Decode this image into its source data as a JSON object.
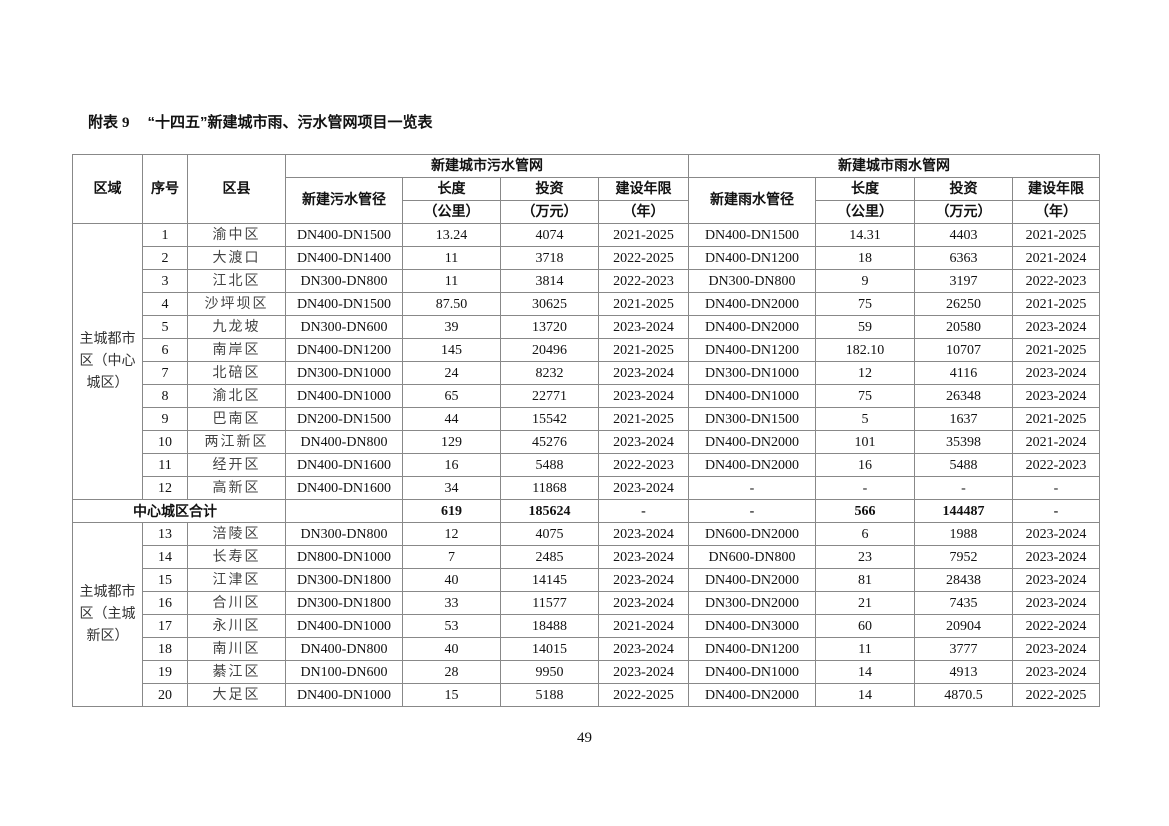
{
  "title": {
    "label": "附表",
    "number": "9",
    "text": "“十四五”新建城市雨、污水管网项目一览表"
  },
  "header": {
    "region": "区域",
    "seq": "序号",
    "district": "区县",
    "sewage_group": "新建城市污水管网",
    "rain_group": "新建城市雨水管网",
    "sewage_diameter": "新建污水管径",
    "rain_diameter": "新建雨水管径",
    "length": "长度",
    "length_unit": "（公里）",
    "investment": "投资",
    "investment_unit": "（万元）",
    "period": "建设年限",
    "period_unit": "（年）"
  },
  "groups": [
    {
      "region": "主城都市区（中心城区）",
      "rows": [
        [
          "1",
          "渝中区",
          "DN400-DN1500",
          "13.24",
          "4074",
          "2021-2025",
          "DN400-DN1500",
          "14.31",
          "4403",
          "2021-2025"
        ],
        [
          "2",
          "大渡口",
          "DN400-DN1400",
          "11",
          "3718",
          "2022-2025",
          "DN400-DN1200",
          "18",
          "6363",
          "2021-2024"
        ],
        [
          "3",
          "江北区",
          "DN300-DN800",
          "11",
          "3814",
          "2022-2023",
          "DN300-DN800",
          "9",
          "3197",
          "2022-2023"
        ],
        [
          "4",
          "沙坪坝区",
          "DN400-DN1500",
          "87.50",
          "30625",
          "2021-2025",
          "DN400-DN2000",
          "75",
          "26250",
          "2021-2025"
        ],
        [
          "5",
          "九龙坡",
          "DN300-DN600",
          "39",
          "13720",
          "2023-2024",
          "DN400-DN2000",
          "59",
          "20580",
          "2023-2024"
        ],
        [
          "6",
          "南岸区",
          "DN400-DN1200",
          "145",
          "20496",
          "2021-2025",
          "DN400-DN1200",
          "182.10",
          "10707",
          "2021-2025"
        ],
        [
          "7",
          "北碚区",
          "DN300-DN1000",
          "24",
          "8232",
          "2023-2024",
          "DN300-DN1000",
          "12",
          "4116",
          "2023-2024"
        ],
        [
          "8",
          "渝北区",
          "DN400-DN1000",
          "65",
          "22771",
          "2023-2024",
          "DN400-DN1000",
          "75",
          "26348",
          "2023-2024"
        ],
        [
          "9",
          "巴南区",
          "DN200-DN1500",
          "44",
          "15542",
          "2021-2025",
          "DN300-DN1500",
          "5",
          "1637",
          "2021-2025"
        ],
        [
          "10",
          "两江新区",
          "DN400-DN800",
          "129",
          "45276",
          "2023-2024",
          "DN400-DN2000",
          "101",
          "35398",
          "2021-2024"
        ],
        [
          "11",
          "经开区",
          "DN400-DN1600",
          "16",
          "5488",
          "2022-2023",
          "DN400-DN2000",
          "16",
          "5488",
          "2022-2023"
        ],
        [
          "12",
          "高新区",
          "DN400-DN1600",
          "34",
          "11868",
          "2023-2024",
          "-",
          "-",
          "-",
          "-"
        ]
      ],
      "total": {
        "label": "中心城区合计",
        "values": [
          "",
          "619",
          "185624",
          "-",
          "-",
          "566",
          "144487",
          "-"
        ]
      }
    },
    {
      "region": "主城都市区（主城新区）",
      "rows": [
        [
          "13",
          "涪陵区",
          "DN300-DN800",
          "12",
          "4075",
          "2023-2024",
          "DN600-DN2000",
          "6",
          "1988",
          "2023-2024"
        ],
        [
          "14",
          "长寿区",
          "DN800-DN1000",
          "7",
          "2485",
          "2023-2024",
          "DN600-DN800",
          "23",
          "7952",
          "2023-2024"
        ],
        [
          "15",
          "江津区",
          "DN300-DN1800",
          "40",
          "14145",
          "2023-2024",
          "DN400-DN2000",
          "81",
          "28438",
          "2023-2024"
        ],
        [
          "16",
          "合川区",
          "DN300-DN1800",
          "33",
          "11577",
          "2023-2024",
          "DN300-DN2000",
          "21",
          "7435",
          "2023-2024"
        ],
        [
          "17",
          "永川区",
          "DN400-DN1000",
          "53",
          "18488",
          "2021-2024",
          "DN400-DN3000",
          "60",
          "20904",
          "2022-2024"
        ],
        [
          "18",
          "南川区",
          "DN400-DN800",
          "40",
          "14015",
          "2023-2024",
          "DN400-DN1200",
          "11",
          "3777",
          "2023-2024"
        ],
        [
          "19",
          "綦江区",
          "DN100-DN600",
          "28",
          "9950",
          "2023-2024",
          "DN400-DN1000",
          "14",
          "4913",
          "2023-2024"
        ],
        [
          "20",
          "大足区",
          "DN400-DN1000",
          "15",
          "5188",
          "2022-2025",
          "DN400-DN2000",
          "14",
          "4870.5",
          "2022-2025"
        ]
      ]
    }
  ],
  "page_number": "49"
}
